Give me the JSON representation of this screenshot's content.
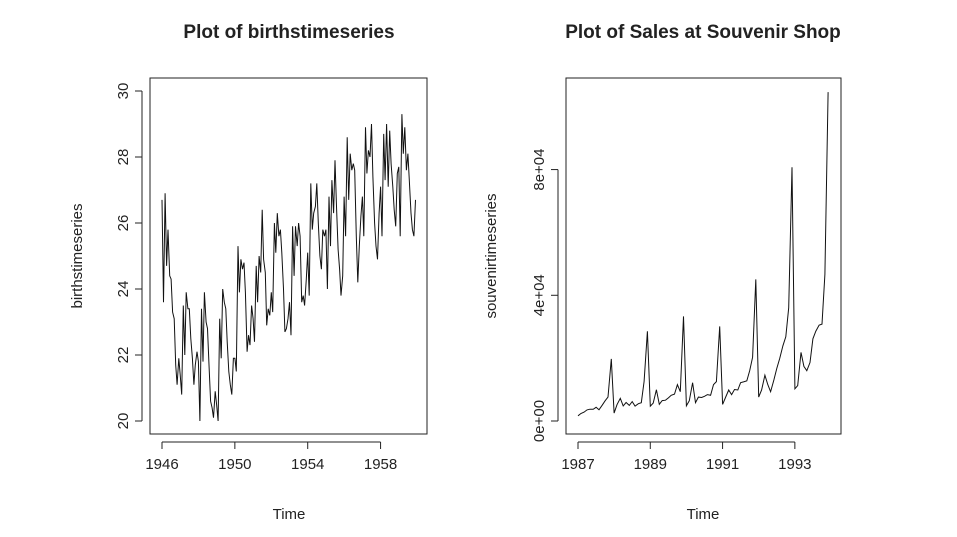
{
  "chart_data": [
    {
      "type": "line",
      "title": "Plot of birthstimeseries",
      "xlabel": "Time",
      "ylabel": "birthstimeseries",
      "xlim": [
        1946,
        1960
      ],
      "ylim": [
        20,
        30
      ],
      "xticks": [
        1946,
        1950,
        1954,
        1958
      ],
      "xtick_labels": [
        "1946",
        "1950",
        "1954",
        "1958"
      ],
      "yticks": [
        20,
        22,
        24,
        26,
        28,
        30
      ],
      "ytick_labels": [
        "20",
        "22",
        "24",
        "26",
        "28",
        "30"
      ],
      "grid": false,
      "legend": "none",
      "series": [
        {
          "x": [
            1946.0,
            1946.08,
            1946.17,
            1946.25,
            1946.33,
            1946.42,
            1946.5,
            1946.58,
            1946.67,
            1946.75,
            1946.83,
            1946.92,
            1947.0,
            1947.08,
            1947.17,
            1947.25,
            1947.33,
            1947.42,
            1947.5,
            1947.58,
            1947.67,
            1947.75,
            1947.83,
            1947.92,
            1948.0,
            1948.08,
            1948.17,
            1948.25,
            1948.33,
            1948.42,
            1948.5,
            1948.58,
            1948.67,
            1948.75,
            1948.83,
            1948.92,
            1949.0,
            1949.08,
            1949.17,
            1949.25,
            1949.33,
            1949.42,
            1949.5,
            1949.58,
            1949.67,
            1949.75,
            1949.83,
            1949.92,
            1950.0,
            1950.08,
            1950.17,
            1950.25,
            1950.33,
            1950.42,
            1950.5,
            1950.58,
            1950.67,
            1950.75,
            1950.83,
            1950.92,
            1951.0,
            1951.08,
            1951.17,
            1951.25,
            1951.33,
            1951.42,
            1951.5,
            1951.58,
            1951.67,
            1951.75,
            1951.83,
            1951.92,
            1952.0,
            1952.08,
            1952.17,
            1952.25,
            1952.33,
            1952.42,
            1952.5,
            1952.58,
            1952.67,
            1952.75,
            1952.83,
            1952.92,
            1953.0,
            1953.08,
            1953.17,
            1953.25,
            1953.33,
            1953.42,
            1953.5,
            1953.58,
            1953.67,
            1953.75,
            1953.83,
            1953.92,
            1954.0,
            1954.08,
            1954.17,
            1954.25,
            1954.33,
            1954.42,
            1954.5,
            1954.58,
            1954.67,
            1954.75,
            1954.83,
            1954.92,
            1955.0,
            1955.08,
            1955.17,
            1955.25,
            1955.33,
            1955.42,
            1955.5,
            1955.58,
            1955.67,
            1955.75,
            1955.83,
            1955.92,
            1956.0,
            1956.08,
            1956.17,
            1956.25,
            1956.33,
            1956.42,
            1956.5,
            1956.58,
            1956.67,
            1956.75,
            1956.83,
            1956.92,
            1957.0,
            1957.08,
            1957.17,
            1957.25,
            1957.33,
            1957.42,
            1957.5,
            1957.58,
            1957.67,
            1957.75,
            1957.83,
            1957.92,
            1958.0,
            1958.08,
            1958.17,
            1958.25,
            1958.33,
            1958.42,
            1958.5,
            1958.58,
            1958.67,
            1958.75,
            1958.83,
            1958.92,
            1959.0,
            1959.08,
            1959.17,
            1959.25,
            1959.33,
            1959.42,
            1959.5,
            1959.58,
            1959.67,
            1959.75,
            1959.83,
            1959.92
          ],
          "y": [
            26.7,
            23.6,
            26.9,
            24.7,
            25.8,
            24.4,
            24.3,
            23.3,
            23.1,
            21.7,
            21.1,
            21.9,
            21.4,
            20.8,
            23.5,
            22.0,
            23.9,
            23.4,
            23.4,
            22.5,
            21.9,
            21.1,
            21.7,
            22.1,
            21.8,
            20.0,
            23.4,
            21.8,
            23.9,
            23.0,
            22.8,
            21.7,
            20.6,
            20.4,
            20.1,
            20.9,
            20.5,
            20.0,
            23.1,
            21.9,
            24.0,
            23.6,
            23.4,
            22.4,
            21.5,
            21.1,
            20.8,
            21.9,
            21.9,
            21.5,
            25.3,
            23.9,
            24.9,
            24.6,
            24.8,
            23.9,
            22.1,
            22.6,
            22.3,
            23.5,
            23.1,
            22.4,
            24.7,
            23.6,
            25.0,
            24.5,
            26.4,
            24.9,
            24.5,
            22.9,
            23.4,
            23.2,
            23.9,
            23.3,
            26.0,
            25.1,
            26.3,
            25.6,
            25.8,
            25.1,
            24.0,
            22.7,
            22.8,
            23.1,
            23.6,
            22.6,
            25.9,
            24.4,
            25.9,
            25.3,
            26.0,
            25.6,
            23.6,
            23.8,
            23.5,
            24.3,
            25.1,
            23.8,
            27.2,
            25.8,
            26.3,
            26.5,
            27.2,
            26.0,
            25.0,
            24.6,
            25.8,
            25.6,
            25.8,
            24.0,
            26.8,
            25.3,
            27.3,
            26.3,
            27.9,
            26.5,
            25.2,
            24.6,
            23.8,
            24.4,
            26.8,
            25.6,
            28.6,
            26.7,
            28.1,
            27.6,
            27.8,
            27.6,
            25.6,
            24.2,
            25.3,
            26.2,
            26.8,
            25.6,
            28.9,
            27.5,
            28.2,
            28.0,
            29.0,
            27.4,
            26.0,
            25.3,
            24.9,
            26.3,
            27.1,
            25.6,
            28.7,
            27.3,
            29.0,
            27.1,
            28.8,
            27.8,
            27.1,
            26.4,
            25.9,
            27.5,
            27.7,
            25.6,
            29.3,
            28.1,
            28.9,
            27.6,
            28.1,
            27.3,
            26.3,
            25.8,
            25.6,
            26.7
          ]
        }
      ]
    },
    {
      "type": "line",
      "title": "Plot of Sales at Souvenir Shop",
      "xlabel": "Time",
      "ylabel": "souvenirtimeseries",
      "xlim": [
        1987,
        1994
      ],
      "ylim": [
        0,
        105000
      ],
      "xticks": [
        1987,
        1989,
        1991,
        1993
      ],
      "xtick_labels": [
        "1987",
        "1989",
        "1991",
        "1993"
      ],
      "yticks": [
        0,
        40000,
        80000
      ],
      "ytick_labels": [
        "0e+00",
        "4e+04",
        "8e+04"
      ],
      "grid": false,
      "legend": "none",
      "series": [
        {
          "x": [
            1987.0,
            1987.08,
            1987.17,
            1987.25,
            1987.33,
            1987.42,
            1987.5,
            1987.58,
            1987.67,
            1987.75,
            1987.83,
            1987.92,
            1988.0,
            1988.08,
            1988.17,
            1988.25,
            1988.33,
            1988.42,
            1988.5,
            1988.58,
            1988.67,
            1988.75,
            1988.83,
            1988.92,
            1989.0,
            1989.08,
            1989.17,
            1989.25,
            1989.33,
            1989.42,
            1989.5,
            1989.58,
            1989.67,
            1989.75,
            1989.83,
            1989.92,
            1990.0,
            1990.08,
            1990.17,
            1990.25,
            1990.33,
            1990.42,
            1990.5,
            1990.58,
            1990.67,
            1990.75,
            1990.83,
            1990.92,
            1991.0,
            1991.08,
            1991.17,
            1991.25,
            1991.33,
            1991.42,
            1991.5,
            1991.58,
            1991.67,
            1991.75,
            1991.83,
            1991.92,
            1992.0,
            1992.08,
            1992.17,
            1992.25,
            1992.33,
            1992.42,
            1992.5,
            1992.58,
            1992.67,
            1992.75,
            1992.83,
            1992.92,
            1993.0,
            1993.08,
            1993.17,
            1993.25,
            1993.33,
            1993.42,
            1993.5,
            1993.58,
            1993.67,
            1993.75,
            1993.83,
            1993.92
          ],
          "y": [
            1664,
            2398,
            2841,
            3547,
            3753,
            3715,
            4350,
            3566,
            5022,
            6423,
            7601,
            19756,
            2499,
            5198,
            7225,
            4806,
            5901,
            4951,
            6179,
            4752,
            5496,
            5835,
            12600,
            28541,
            4717,
            5702,
            9957,
            5305,
            6492,
            6631,
            7350,
            8176,
            8574,
            11587,
            9333,
            33281,
            4826,
            6470,
            12176,
            5814,
            7617,
            7470,
            7847,
            8393,
            8180,
            11581,
            12551,
            30115,
            5268,
            7478,
            9849,
            8398,
            10033,
            9851,
            12190,
            12430,
            12752,
            16046,
            20306,
            45060,
            7615,
            9849,
            14558,
            11588,
            9333,
            13082,
            16732,
            19889,
            23933,
            26788,
            36025,
            80721,
            10243,
            11267,
            21826,
            17357,
            15997,
            18602,
            26155,
            28587,
            30505,
            30821,
            46634,
            104661
          ]
        }
      ]
    }
  ]
}
